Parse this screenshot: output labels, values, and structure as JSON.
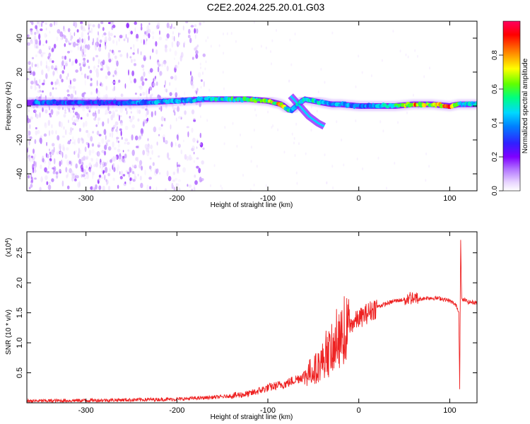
{
  "title": "C2E2.2024.225.20.01.G03",
  "chart_data": [
    {
      "type": "heatmap",
      "xlabel": "Height of straight line (km)",
      "ylabel": "Frequency (Hz)",
      "xlim": [
        -365,
        130
      ],
      "ylim": [
        -50,
        50
      ],
      "xticks": [
        -300,
        -200,
        -100,
        0,
        100
      ],
      "yticks": [
        -40,
        -20,
        0,
        20,
        40
      ],
      "colorbar": {
        "label": "Normalized spectral amplitude",
        "range": [
          0.0,
          1.0
        ],
        "ticks": [
          "0.0",
          "0.2",
          "0.4",
          "0.6",
          "0.8"
        ],
        "colors": [
          "#ffffff",
          "#e8d4ff",
          "#b070ff",
          "#7f00ff",
          "#3020ff",
          "#0080ff",
          "#00d8ff",
          "#00ff80",
          "#60ff00",
          "#ffff00",
          "#ff8000",
          "#ff0000",
          "#ff0060"
        ]
      },
      "trace": {
        "x": [
          -355,
          -330,
          -300,
          -270,
          -240,
          -200,
          -170,
          -140,
          -120,
          -100,
          -85,
          -75,
          -60,
          -50,
          -40,
          -30,
          -20,
          0,
          20,
          40,
          60,
          80,
          100,
          110,
          130
        ],
        "y": [
          2,
          2,
          2,
          2,
          2,
          3,
          4,
          4,
          4,
          3,
          1,
          -3,
          4,
          3,
          2,
          1,
          1,
          0,
          0,
          0,
          1,
          1,
          0,
          1,
          1
        ],
        "amplitude": [
          0.45,
          0.4,
          0.4,
          0.35,
          0.45,
          0.5,
          0.5,
          0.6,
          0.65,
          0.7,
          0.8,
          0.5,
          0.6,
          0.55,
          0.5,
          0.45,
          0.5,
          0.45,
          0.5,
          0.6,
          0.85,
          0.7,
          0.9,
          0.6,
          0.5
        ]
      },
      "branch": {
        "x": [
          -75,
          -65,
          -55,
          -45,
          -38
        ],
        "y": [
          6,
          0,
          -6,
          -10,
          -12
        ]
      },
      "noise_region": [
        -365,
        -180
      ]
    },
    {
      "type": "line",
      "xlabel": "Height of straight line (km)",
      "ylabel": "SNR (10 * v/v)",
      "multiplier": "(x10",
      "multiplier_exp": "4",
      "xlim": [
        -365,
        130
      ],
      "ylim": [
        0,
        2.85
      ],
      "xticks": [
        -300,
        -200,
        -100,
        0,
        100
      ],
      "yticks": [
        "0.5",
        "1.0",
        "1.5",
        "2.0",
        "2.5"
      ],
      "color": "#ee2222",
      "series": [
        {
          "x": [
            -365,
            -300,
            -250,
            -200,
            -150,
            -120,
            -100,
            -80,
            -60,
            -45,
            -35,
            -25,
            -20,
            -15,
            -5,
            0,
            10,
            20,
            30,
            40,
            50,
            55,
            60,
            65,
            75,
            90,
            100,
            105,
            108,
            110,
            111,
            112,
            113,
            114,
            116,
            120,
            130
          ],
          "y": [
            0.03,
            0.04,
            0.05,
            0.06,
            0.1,
            0.15,
            0.25,
            0.32,
            0.45,
            0.6,
            0.8,
            1.0,
            1.05,
            1.2,
            1.35,
            1.4,
            1.5,
            1.6,
            1.65,
            1.7,
            1.72,
            1.75,
            1.76,
            1.72,
            1.75,
            1.74,
            1.7,
            1.65,
            1.6,
            1.5,
            0.25,
            2.8,
            1.75,
            1.7,
            1.72,
            1.68,
            1.67
          ]
        }
      ]
    }
  ]
}
